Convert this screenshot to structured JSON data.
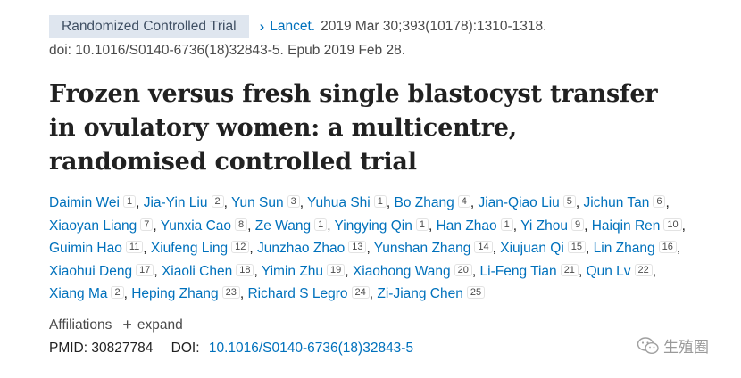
{
  "badge": "Randomized Controlled Trial",
  "journal": "Lancet.",
  "citation": "2019 Mar 30;393(10178):1310-1318.",
  "doi_line": "doi: 10.1016/S0140-6736(18)32843-5. Epub 2019 Feb 28.",
  "title": "Frozen versus fresh single blastocyst transfer in ovulatory women: a multicentre, randomised controlled trial",
  "authors": [
    {
      "name": "Daimin Wei",
      "aff": "1"
    },
    {
      "name": "Jia-Yin Liu",
      "aff": "2"
    },
    {
      "name": "Yun Sun",
      "aff": "3"
    },
    {
      "name": "Yuhua Shi",
      "aff": "1"
    },
    {
      "name": "Bo Zhang",
      "aff": "4"
    },
    {
      "name": "Jian-Qiao Liu",
      "aff": "5"
    },
    {
      "name": "Jichun Tan",
      "aff": "6"
    },
    {
      "name": "Xiaoyan Liang",
      "aff": "7"
    },
    {
      "name": "Yunxia Cao",
      "aff": "8"
    },
    {
      "name": "Ze Wang",
      "aff": "1"
    },
    {
      "name": "Yingying Qin",
      "aff": "1"
    },
    {
      "name": "Han Zhao",
      "aff": "1"
    },
    {
      "name": "Yi Zhou",
      "aff": "9"
    },
    {
      "name": "Haiqin Ren",
      "aff": "10"
    },
    {
      "name": "Guimin Hao",
      "aff": "11"
    },
    {
      "name": "Xiufeng Ling",
      "aff": "12"
    },
    {
      "name": "Junzhao Zhao",
      "aff": "13"
    },
    {
      "name": "Yunshan Zhang",
      "aff": "14"
    },
    {
      "name": "Xiujuan Qi",
      "aff": "15"
    },
    {
      "name": "Lin Zhang",
      "aff": "16"
    },
    {
      "name": "Xiaohui Deng",
      "aff": "17"
    },
    {
      "name": "Xiaoli Chen",
      "aff": "18"
    },
    {
      "name": "Yimin Zhu",
      "aff": "19"
    },
    {
      "name": "Xiaohong Wang",
      "aff": "20"
    },
    {
      "name": "Li-Feng Tian",
      "aff": "21"
    },
    {
      "name": "Qun Lv",
      "aff": "22"
    },
    {
      "name": "Xiang Ma",
      "aff": "2"
    },
    {
      "name": "Heping Zhang",
      "aff": "23"
    },
    {
      "name": "Richard S Legro",
      "aff": "24"
    },
    {
      "name": "Zi-Jiang Chen",
      "aff": "25"
    }
  ],
  "affiliations_label": "Affiliations",
  "expand_label": "expand",
  "pmid_label": "PMID:",
  "pmid_value": "30827784",
  "doi_label": "DOI:",
  "doi_value": "10.1016/S0140-6736(18)32843-5",
  "watermark": "生殖圈",
  "colors": {
    "link": "#0071bc",
    "badge_bg": "#dfe6ef",
    "text": "#212121"
  },
  "icons": {
    "journal_chevron": "chevron-right-icon",
    "expand": "plus-icon",
    "watermark": "wechat-logo-icon"
  }
}
